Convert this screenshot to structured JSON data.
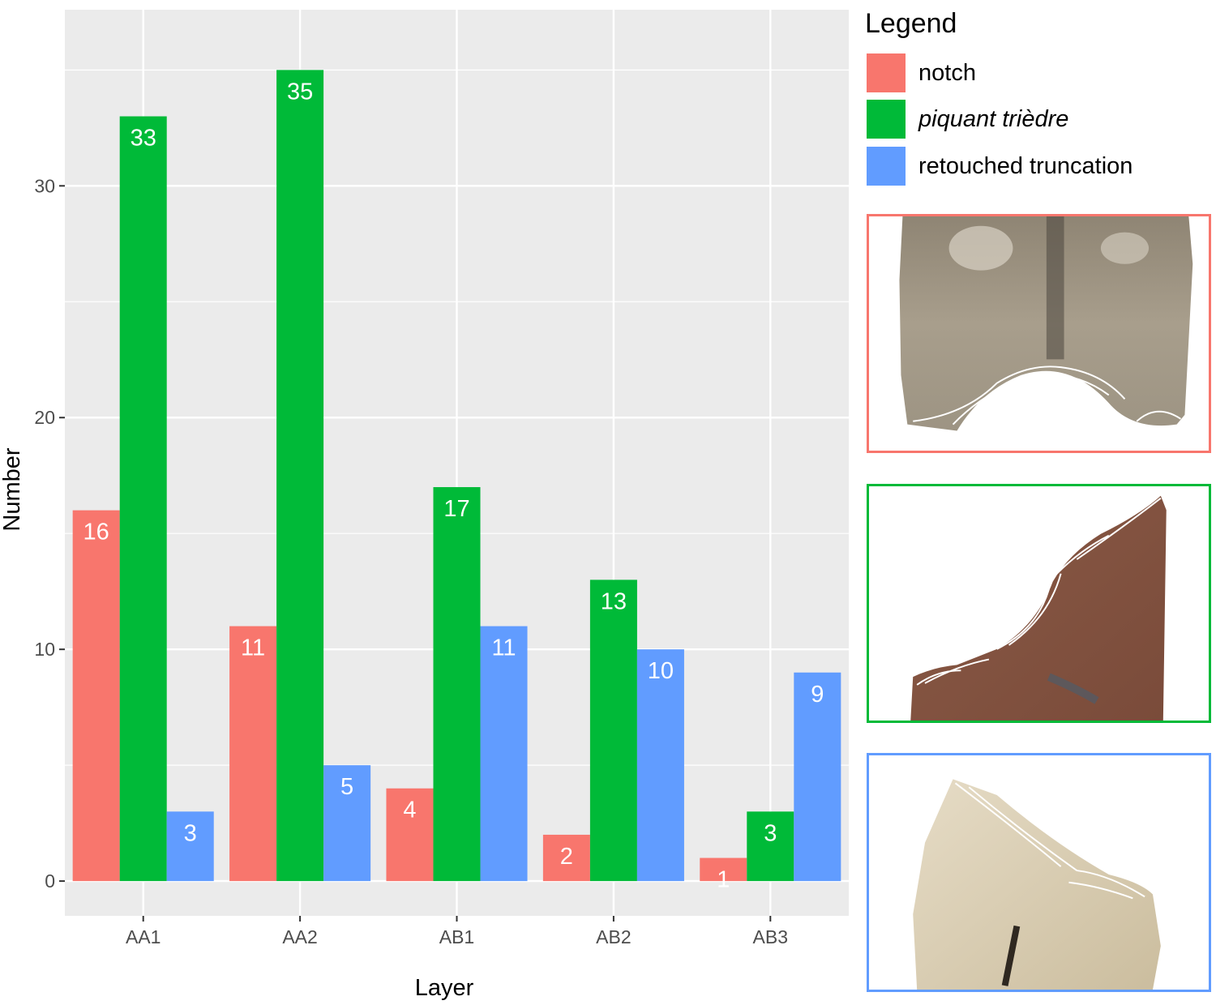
{
  "chart_data": {
    "type": "bar",
    "xlabel": "Layer",
    "ylabel": "Number",
    "categories": [
      "AA1",
      "AA2",
      "AB1",
      "AB2",
      "AB3"
    ],
    "ylim": [
      -1.5,
      37.6
    ],
    "yticks": [
      0,
      10,
      20,
      30
    ],
    "grid": true,
    "legend_position": "right",
    "series": [
      {
        "name": "notch",
        "color": "#F8766D",
        "values": [
          16,
          11,
          4,
          2,
          1
        ]
      },
      {
        "name": "piquant trièdre",
        "color": "#00BA38",
        "values": [
          33,
          35,
          17,
          13,
          3
        ]
      },
      {
        "name": "retouched truncation",
        "color": "#619CFF",
        "values": [
          3,
          5,
          11,
          10,
          9
        ]
      }
    ]
  },
  "legend": {
    "title": "Legend",
    "items": [
      {
        "label": "notch",
        "color": "#F8766D",
        "italic": false
      },
      {
        "label": "piquant trièdre",
        "color": "#00BA38",
        "italic": true
      },
      {
        "label": "retouched truncation",
        "color": "#619CFF",
        "italic": false
      }
    ]
  },
  "photos": [
    {
      "name": "notch-artifact-photo",
      "border_color": "#F8766D"
    },
    {
      "name": "piquant-triedre-artifact-photo",
      "border_color": "#00BA38"
    },
    {
      "name": "retouched-truncation-artifact-photo",
      "border_color": "#619CFF"
    }
  ]
}
